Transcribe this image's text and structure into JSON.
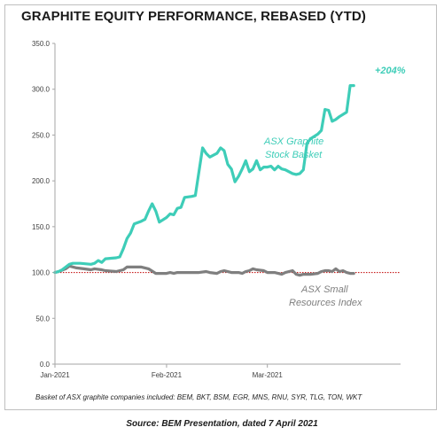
{
  "chart_data": {
    "type": "line",
    "title": "GRAPHITE EQUITY PERFORMANCE, REBASED (YTD)",
    "xlabel": "",
    "ylabel": "",
    "ylim": [
      0,
      350
    ],
    "yticks": [
      "0.0",
      "50.0",
      "100.0",
      "150.0",
      "200.0",
      "250.0",
      "300.0",
      "350.0"
    ],
    "xticks": [
      {
        "label": "Jan-2021",
        "date": "2021-01-01"
      },
      {
        "label": "Feb-2021",
        "date": "2021-02-01"
      },
      {
        "label": "Mar-2021",
        "date": "2021-03-01"
      }
    ],
    "x_range": [
      "2021-01-01",
      "2021-04-07"
    ],
    "grid": false,
    "reference_line": {
      "value": 100,
      "color": "#c00000",
      "style": "dotted"
    },
    "series": [
      {
        "name": "ASX Graphite Stock Basket",
        "color": "#3ecdb8",
        "points": [
          [
            "2021-01-01",
            100
          ],
          [
            "2021-01-02",
            101
          ],
          [
            "2021-01-03",
            103
          ],
          [
            "2021-01-04",
            106
          ],
          [
            "2021-01-05",
            109
          ],
          [
            "2021-01-06",
            110
          ],
          [
            "2021-01-08",
            110
          ],
          [
            "2021-01-11",
            109
          ],
          [
            "2021-01-12",
            110
          ],
          [
            "2021-01-13",
            113
          ],
          [
            "2021-01-14",
            111
          ],
          [
            "2021-01-15",
            115
          ],
          [
            "2021-01-18",
            116
          ],
          [
            "2021-01-19",
            117
          ],
          [
            "2021-01-20",
            126
          ],
          [
            "2021-01-21",
            137
          ],
          [
            "2021-01-22",
            143
          ],
          [
            "2021-01-23",
            153
          ],
          [
            "2021-01-25",
            156
          ],
          [
            "2021-01-26",
            158
          ],
          [
            "2021-01-27",
            167
          ],
          [
            "2021-01-28",
            175
          ],
          [
            "2021-01-29",
            167
          ],
          [
            "2021-01-30",
            155
          ],
          [
            "2021-02-01",
            160
          ],
          [
            "2021-02-02",
            164
          ],
          [
            "2021-02-03",
            163
          ],
          [
            "2021-02-04",
            170
          ],
          [
            "2021-02-05",
            171
          ],
          [
            "2021-02-06",
            182
          ],
          [
            "2021-02-08",
            183
          ],
          [
            "2021-02-09",
            184
          ],
          [
            "2021-02-10",
            210
          ],
          [
            "2021-02-11",
            236
          ],
          [
            "2021-02-12",
            230
          ],
          [
            "2021-02-13",
            226
          ],
          [
            "2021-02-15",
            230
          ],
          [
            "2021-02-16",
            236
          ],
          [
            "2021-02-17",
            233
          ],
          [
            "2021-02-18",
            218
          ],
          [
            "2021-02-19",
            213
          ],
          [
            "2021-02-20",
            199
          ],
          [
            "2021-02-21",
            205
          ],
          [
            "2021-02-22",
            213
          ],
          [
            "2021-02-23",
            222
          ],
          [
            "2021-02-24",
            210
          ],
          [
            "2021-02-25",
            213
          ],
          [
            "2021-02-26",
            222
          ],
          [
            "2021-02-27",
            212
          ],
          [
            "2021-02-28",
            215
          ],
          [
            "2021-03-01",
            215
          ],
          [
            "2021-03-02",
            216
          ],
          [
            "2021-03-03",
            212
          ],
          [
            "2021-03-04",
            216
          ],
          [
            "2021-03-05",
            213
          ],
          [
            "2021-03-06",
            212
          ],
          [
            "2021-03-08",
            208
          ],
          [
            "2021-03-09",
            207
          ],
          [
            "2021-03-10",
            208
          ],
          [
            "2021-03-11",
            212
          ],
          [
            "2021-03-12",
            241
          ],
          [
            "2021-03-13",
            246
          ],
          [
            "2021-03-15",
            251
          ],
          [
            "2021-03-16",
            255
          ],
          [
            "2021-03-17",
            278
          ],
          [
            "2021-03-18",
            277
          ],
          [
            "2021-03-19",
            265
          ],
          [
            "2021-03-20",
            267
          ],
          [
            "2021-03-21",
            270
          ],
          [
            "2021-03-23",
            275
          ],
          [
            "2021-03-24",
            304
          ],
          [
            "2021-03-25",
            304
          ]
        ]
      },
      {
        "name": "ASX Small Resources Index",
        "color": "#7f7f7f",
        "points": [
          [
            "2021-01-01",
            100
          ],
          [
            "2021-01-02",
            101
          ],
          [
            "2021-01-04",
            104
          ],
          [
            "2021-01-05",
            107
          ],
          [
            "2021-01-07",
            105
          ],
          [
            "2021-01-09",
            104
          ],
          [
            "2021-01-11",
            103
          ],
          [
            "2021-01-12",
            104
          ],
          [
            "2021-01-14",
            103
          ],
          [
            "2021-01-15",
            102
          ],
          [
            "2021-01-18",
            101
          ],
          [
            "2021-01-19",
            102
          ],
          [
            "2021-01-20",
            103
          ],
          [
            "2021-01-21",
            106
          ],
          [
            "2021-01-23",
            106
          ],
          [
            "2021-01-25",
            106
          ],
          [
            "2021-01-26",
            105
          ],
          [
            "2021-01-27",
            104
          ],
          [
            "2021-01-29",
            99
          ],
          [
            "2021-02-01",
            99
          ],
          [
            "2021-02-02",
            100
          ],
          [
            "2021-02-03",
            99
          ],
          [
            "2021-02-04",
            100
          ],
          [
            "2021-02-06",
            100
          ],
          [
            "2021-02-08",
            100
          ],
          [
            "2021-02-10",
            100
          ],
          [
            "2021-02-12",
            101
          ],
          [
            "2021-02-13",
            100
          ],
          [
            "2021-02-15",
            99
          ],
          [
            "2021-02-16",
            101
          ],
          [
            "2021-02-17",
            102
          ],
          [
            "2021-02-18",
            101
          ],
          [
            "2021-02-19",
            100
          ],
          [
            "2021-02-21",
            100
          ],
          [
            "2021-02-22",
            99
          ],
          [
            "2021-02-23",
            101
          ],
          [
            "2021-02-24",
            102
          ],
          [
            "2021-02-25",
            104
          ],
          [
            "2021-02-26",
            103
          ],
          [
            "2021-02-28",
            102
          ],
          [
            "2021-03-01",
            100
          ],
          [
            "2021-03-02",
            100
          ],
          [
            "2021-03-03",
            100
          ],
          [
            "2021-03-04",
            99
          ],
          [
            "2021-03-05",
            98
          ],
          [
            "2021-03-06",
            100
          ],
          [
            "2021-03-08",
            102
          ],
          [
            "2021-03-09",
            98
          ],
          [
            "2021-03-10",
            97
          ],
          [
            "2021-03-11",
            98
          ],
          [
            "2021-03-13",
            98
          ],
          [
            "2021-03-15",
            99
          ],
          [
            "2021-03-16",
            101
          ],
          [
            "2021-03-17",
            102
          ],
          [
            "2021-03-18",
            102
          ],
          [
            "2021-03-19",
            101
          ],
          [
            "2021-03-20",
            104
          ],
          [
            "2021-03-21",
            101
          ],
          [
            "2021-03-22",
            102
          ],
          [
            "2021-03-23",
            100
          ],
          [
            "2021-03-24",
            99
          ],
          [
            "2021-03-25",
            99
          ]
        ]
      }
    ],
    "annotations": {
      "graphite_line1": "ASX Graphite",
      "graphite_line2": "Stock Basket",
      "graphite_pct": "+204%",
      "index_line1": "ASX Small",
      "index_line2": "Resources Index"
    }
  },
  "footnote": "Basket of ASX graphite companies included: BEM, BKT, BSM, EGR, MNS, RNU, SYR, TLG, TON, WKT",
  "source": "Source: BEM Presentation, dated 7 April 2021"
}
